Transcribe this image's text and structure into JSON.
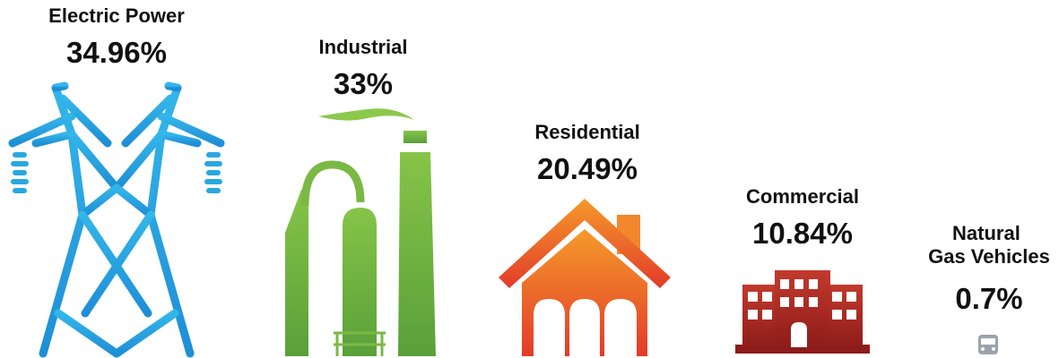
{
  "chart_data": {
    "type": "pictogram",
    "categories": [
      "Electric Power",
      "Industrial",
      "Residential",
      "Commercial",
      "Natural\nGas Vehicles"
    ],
    "values": [
      34.96,
      33,
      20.49,
      10.84,
      0.7
    ],
    "value_labels": [
      "34.96%",
      "33%",
      "20.49%",
      "10.84%",
      "0.7%"
    ],
    "unit": "%",
    "icons": [
      "transmission-tower-icon",
      "factory-icon",
      "house-icon",
      "office-building-icon",
      "bus-icon"
    ],
    "colors": [
      "#29a8e0",
      "#6fb43f",
      "#ee6a2c",
      "#b02a22",
      "#9aa3ab"
    ]
  }
}
